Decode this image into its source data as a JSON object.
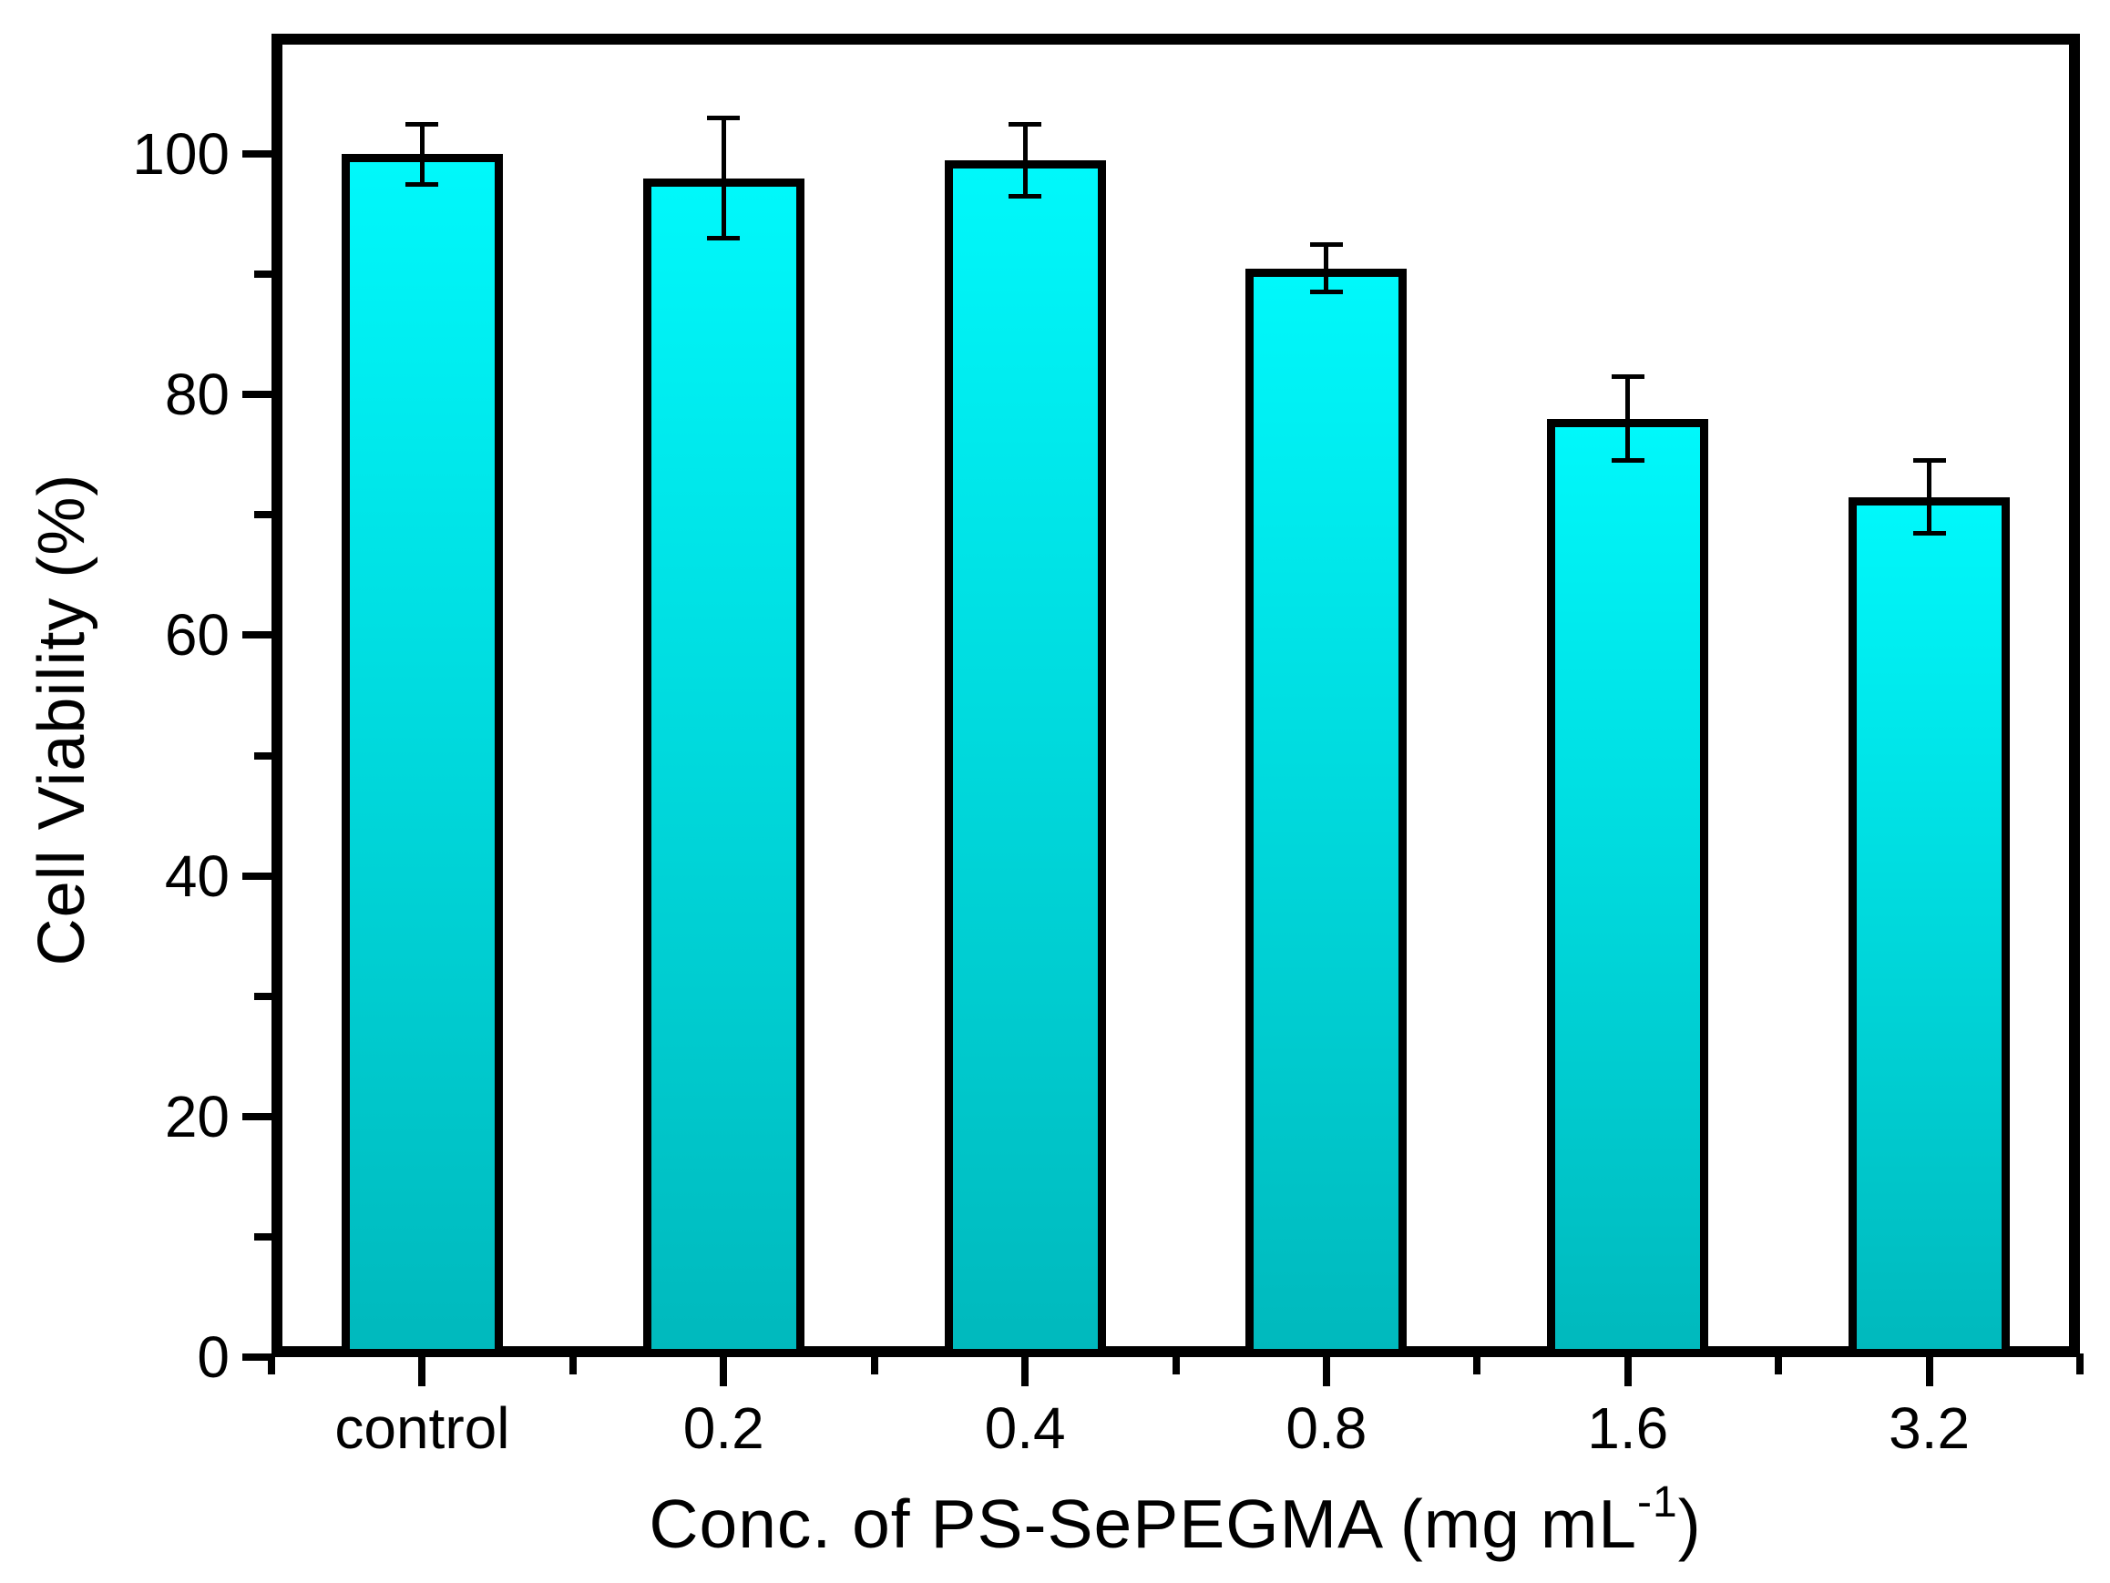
{
  "figure": {
    "background": "#ffffff"
  },
  "chart_data": {
    "type": "bar",
    "title": "",
    "xlabel": "Conc. of PS-SePEGMA (mg mL⁻¹)",
    "xlabel_parts": {
      "prefix": "Conc. of PS-SePEGMA (mg mL",
      "superscript": "-1",
      "suffix": ")"
    },
    "ylabel": "Cell Viability (%)",
    "categories": [
      "control",
      "0.2",
      "0.4",
      "0.8",
      "1.6",
      "3.2"
    ],
    "series": [
      {
        "name": "cell-viability",
        "values": [
          100,
          98,
          99.5,
          90.5,
          78,
          71.5
        ],
        "errors": [
          2.5,
          5,
          3,
          2,
          3.5,
          3
        ]
      }
    ],
    "ylim": [
      0,
      110
    ],
    "yticks_major": [
      0,
      20,
      40,
      60,
      80,
      100
    ],
    "yticks_minor": [
      10,
      30,
      50,
      70,
      90
    ],
    "grid": false,
    "legend": null,
    "bar_style": {
      "fill_top": "#00f8fb",
      "fill_bottom": "#00b9bd",
      "border_color": "#000000",
      "error_color": "#000000"
    }
  }
}
